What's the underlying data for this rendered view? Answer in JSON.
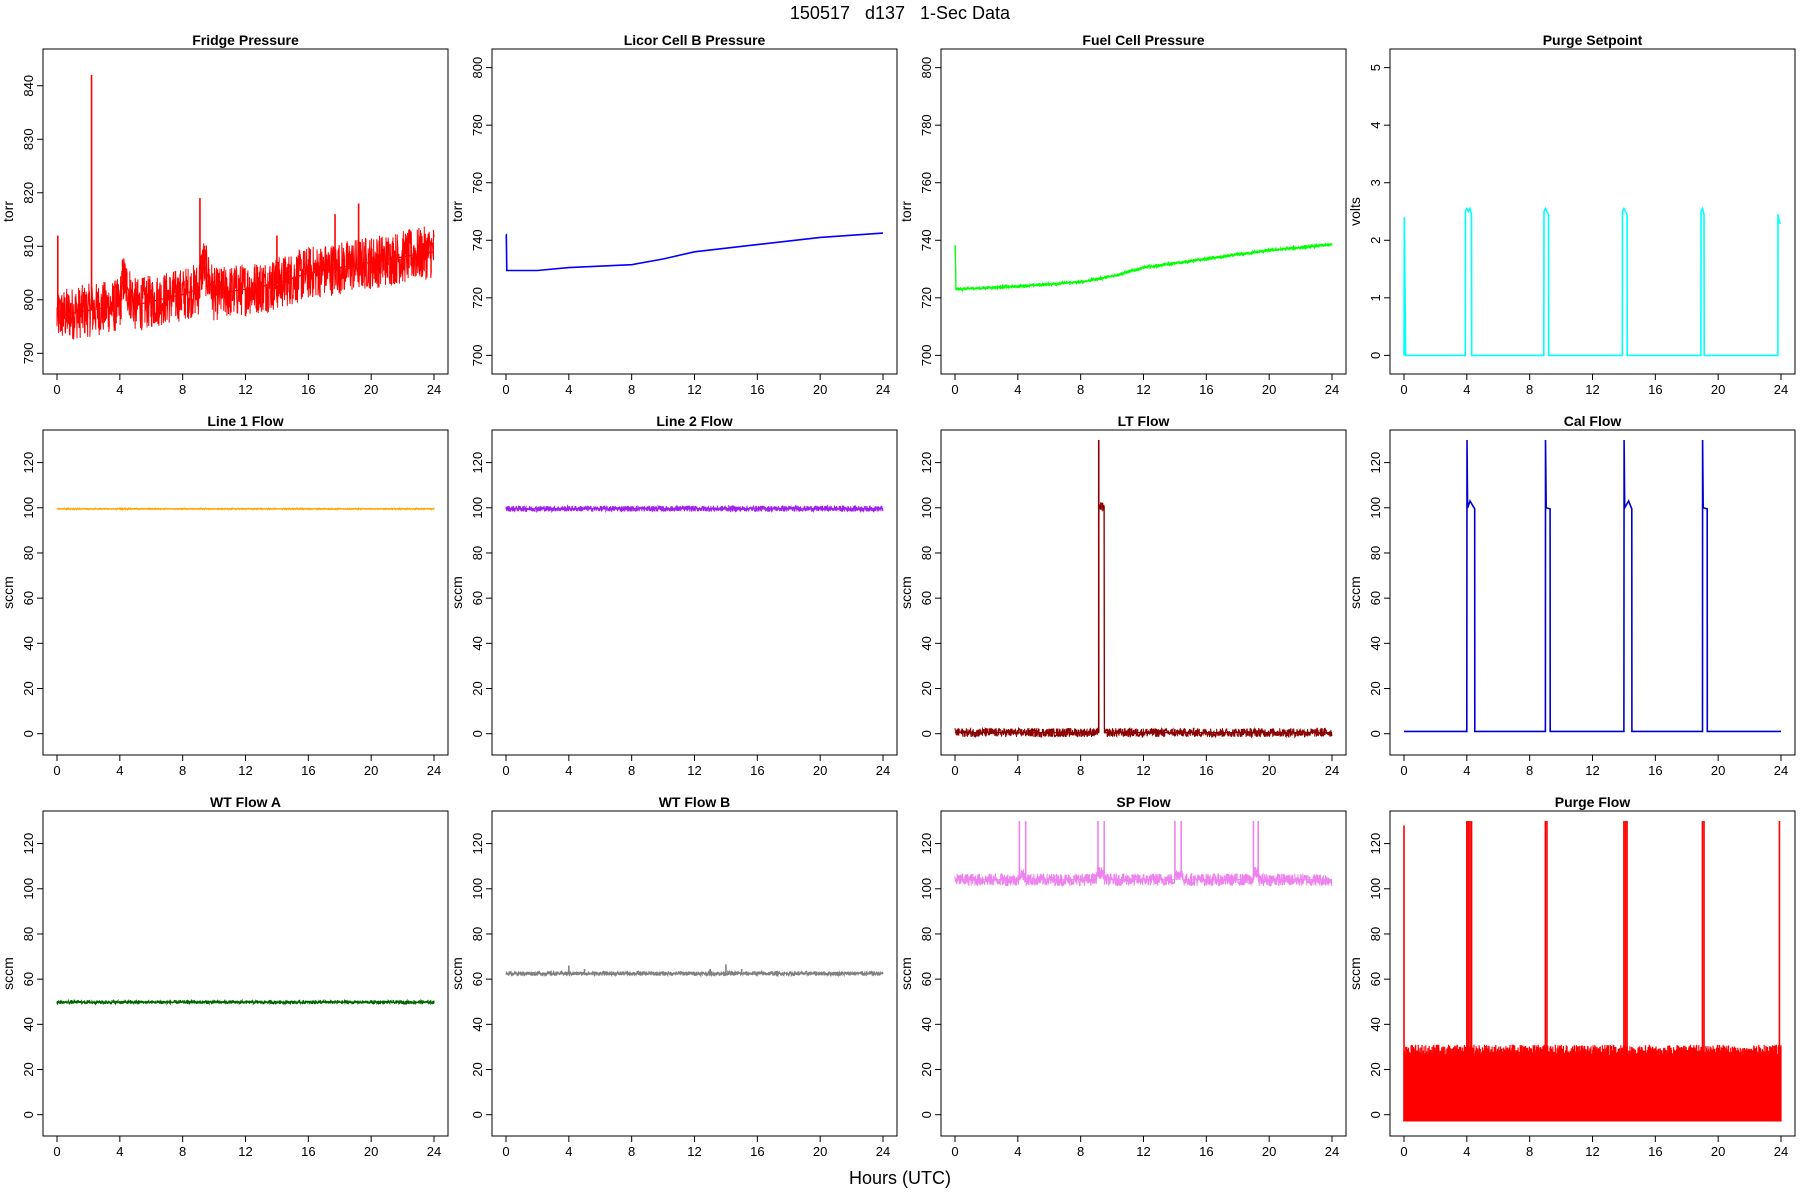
{
  "page": {
    "title": "150517   d137   1-Sec Data",
    "xlabel": "Hours (UTC)"
  },
  "chart_data": [
    {
      "id": "fridge_pressure",
      "type": "line",
      "title": "Fridge Pressure",
      "ylabel": "torr",
      "color": "#ff0000",
      "xlim": [
        0,
        24
      ],
      "ylim": [
        788,
        845
      ],
      "yticks": [
        790,
        800,
        810,
        820,
        830,
        840
      ],
      "xticks": [
        0,
        4,
        8,
        12,
        16,
        20,
        24
      ],
      "noise": 5,
      "series": [
        {
          "x": [
            0,
            4,
            4.2,
            5,
            8,
            9,
            9.3,
            10,
            14,
            16,
            20,
            24
          ],
          "y": [
            797,
            799,
            804,
            799,
            801,
            802,
            807,
            801,
            803,
            805,
            807,
            809
          ]
        }
      ],
      "spikes": [
        [
          0.05,
          812
        ],
        [
          2.2,
          842
        ],
        [
          9.1,
          819
        ],
        [
          14,
          812
        ],
        [
          17.7,
          816
        ],
        [
          19.2,
          818
        ]
      ]
    },
    {
      "id": "licor_cell_b_pressure",
      "type": "line",
      "title": "Licor Cell B Pressure",
      "ylabel": "torr",
      "color": "#0000ff",
      "xlim": [
        0,
        24
      ],
      "ylim": [
        697,
        803
      ],
      "yticks": [
        700,
        720,
        740,
        760,
        780,
        800
      ],
      "xticks": [
        0,
        4,
        8,
        12,
        16,
        20,
        24
      ],
      "noise": 0,
      "series": [
        {
          "x": [
            0,
            0.02,
            0.05,
            2,
            4,
            8,
            10,
            12,
            16,
            20,
            24
          ],
          "y": [
            742,
            742,
            729.5,
            729.5,
            730.5,
            731.5,
            733.5,
            736,
            738.5,
            741,
            742.5
          ]
        }
      ],
      "spikes": []
    },
    {
      "id": "fuel_cell_pressure",
      "type": "line",
      "title": "Fuel Cell Pressure",
      "ylabel": "torr",
      "color": "#00ff00",
      "xlim": [
        0,
        24
      ],
      "ylim": [
        697,
        803
      ],
      "yticks": [
        700,
        720,
        740,
        760,
        780,
        800
      ],
      "xticks": [
        0,
        4,
        8,
        12,
        16,
        20,
        24
      ],
      "noise": 0.6,
      "series": [
        {
          "x": [
            0,
            0.02,
            0.06,
            4,
            8,
            10,
            12,
            16,
            20,
            24
          ],
          "y": [
            738,
            738,
            723,
            724,
            725.5,
            727.5,
            730.5,
            733.5,
            736.5,
            738.5
          ]
        }
      ],
      "spikes": []
    },
    {
      "id": "purge_setpoint",
      "type": "line",
      "title": "Purge Setpoint",
      "ylabel": "volts",
      "color": "#00ffff",
      "xlim": [
        0,
        24
      ],
      "ylim": [
        -0.15,
        5.15
      ],
      "yticks": [
        0,
        1,
        2,
        3,
        4,
        5
      ],
      "xticks": [
        0,
        4,
        8,
        12,
        16,
        20,
        24
      ],
      "noise": 0,
      "series": [
        {
          "x": [
            0,
            0.02,
            0.1,
            3.9,
            3.91,
            4.0,
            4.1,
            4.2,
            4.3,
            4.31,
            8.9,
            8.91,
            9.0,
            9.1,
            9.2,
            9.21,
            13.9,
            13.91,
            14.0,
            14.1,
            14.2,
            14.21,
            18.9,
            18.91,
            19.0,
            19.1,
            19.11,
            23.8,
            23.81,
            23.9,
            24
          ],
          "y": [
            0,
            2.4,
            0,
            0,
            2.5,
            2.55,
            2.5,
            2.55,
            2.45,
            0,
            0,
            2.5,
            2.55,
            2.5,
            2.45,
            0,
            0,
            2.5,
            2.55,
            2.5,
            2.45,
            0,
            0,
            2.5,
            2.55,
            2.45,
            0,
            0,
            2.45,
            2.3,
            2.3
          ]
        }
      ],
      "spikes": []
    },
    {
      "id": "line_1_flow",
      "type": "line",
      "title": "Line 1 Flow",
      "ylabel": "sccm",
      "color": "#ffa500",
      "xlim": [
        0,
        24
      ],
      "ylim": [
        -5,
        130
      ],
      "yticks": [
        0,
        20,
        40,
        60,
        80,
        100,
        120
      ],
      "xticks": [
        0,
        4,
        8,
        12,
        16,
        20,
        24
      ],
      "noise": 0.2,
      "series": [
        {
          "x": [
            0,
            24
          ],
          "y": [
            99.5,
            99.5
          ]
        }
      ],
      "spikes": []
    },
    {
      "id": "line_2_flow",
      "type": "line",
      "title": "Line 2 Flow",
      "ylabel": "sccm",
      "color": "#a020f0",
      "xlim": [
        0,
        24
      ],
      "ylim": [
        -5,
        130
      ],
      "yticks": [
        0,
        20,
        40,
        60,
        80,
        100,
        120
      ],
      "xticks": [
        0,
        4,
        8,
        12,
        16,
        20,
        24
      ],
      "noise": 1.3,
      "series": [
        {
          "x": [
            0,
            24
          ],
          "y": [
            99.6,
            99.6
          ]
        }
      ],
      "spikes": []
    },
    {
      "id": "lt_flow",
      "type": "line",
      "title": "LT Flow",
      "ylabel": "sccm",
      "color": "#8b0000",
      "xlim": [
        0,
        24
      ],
      "ylim": [
        -5,
        130
      ],
      "yticks": [
        0,
        20,
        40,
        60,
        80,
        100,
        120
      ],
      "xticks": [
        0,
        4,
        8,
        12,
        16,
        20,
        24
      ],
      "noise": 2,
      "series": [
        {
          "x": [
            0,
            9.15,
            9.16,
            9.5,
            9.51,
            24
          ],
          "y": [
            0.5,
            0.5,
            100.5,
            100.5,
            0.5,
            0.5
          ]
        }
      ],
      "spikes": [
        [
          9.15,
          130
        ]
      ]
    },
    {
      "id": "cal_flow",
      "type": "line",
      "title": "Cal Flow",
      "ylabel": "sccm",
      "color": "#0000cd",
      "xlim": [
        0,
        24
      ],
      "ylim": [
        -5,
        130
      ],
      "yticks": [
        0,
        20,
        40,
        60,
        80,
        100,
        120
      ],
      "xticks": [
        0,
        4,
        8,
        12,
        16,
        20,
        24
      ],
      "noise": 0,
      "series": [
        {
          "x": [
            0,
            4.0,
            4.01,
            4.05,
            4.2,
            4.5,
            4.51,
            9.0,
            9.01,
            9.05,
            9.3,
            9.31,
            14.0,
            14.01,
            14.05,
            14.3,
            14.5,
            14.51,
            19.0,
            19.01,
            19.05,
            19.3,
            19.31,
            24
          ],
          "y": [
            1,
            1,
            130,
            100,
            103,
            99.5,
            1,
            1,
            130,
            100,
            99.5,
            1,
            1,
            130,
            100,
            103,
            99.5,
            1,
            1,
            130,
            100,
            99.5,
            1,
            1
          ]
        }
      ],
      "spikes": []
    },
    {
      "id": "wt_flow_a",
      "type": "line",
      "title": "WT Flow A",
      "ylabel": "sccm",
      "color": "#006400",
      "xlim": [
        0,
        24
      ],
      "ylim": [
        -5,
        130
      ],
      "yticks": [
        0,
        20,
        40,
        60,
        80,
        100,
        120
      ],
      "xticks": [
        0,
        4,
        8,
        12,
        16,
        20,
        24
      ],
      "noise": 0.8,
      "series": [
        {
          "x": [
            0,
            24
          ],
          "y": [
            49.8,
            49.8
          ]
        }
      ],
      "spikes": []
    },
    {
      "id": "wt_flow_b",
      "type": "line",
      "title": "WT Flow B",
      "ylabel": "sccm",
      "color": "#808080",
      "xlim": [
        0,
        24
      ],
      "ylim": [
        -5,
        130
      ],
      "yticks": [
        0,
        20,
        40,
        60,
        80,
        100,
        120
      ],
      "xticks": [
        0,
        4,
        8,
        12,
        16,
        20,
        24
      ],
      "noise": 1,
      "series": [
        {
          "x": [
            0,
            24
          ],
          "y": [
            62.5,
            62.5
          ]
        }
      ],
      "spikes": [
        [
          4,
          66
        ],
        [
          5,
          64.5
        ],
        [
          13,
          64.5
        ],
        [
          14,
          66.5
        ],
        [
          15,
          64.5
        ]
      ]
    },
    {
      "id": "sp_flow",
      "type": "line",
      "title": "SP Flow",
      "ylabel": "sccm",
      "color": "#ee82ee",
      "xlim": [
        0,
        24
      ],
      "ylim": [
        -5,
        130
      ],
      "yticks": [
        0,
        20,
        40,
        60,
        80,
        100,
        120
      ],
      "xticks": [
        0,
        4,
        8,
        12,
        16,
        20,
        24
      ],
      "noise": 2.8,
      "series": [
        {
          "x": [
            0,
            4.1,
            4.11,
            4.4,
            4.41,
            9.0,
            9.01,
            9.5,
            9.51,
            14.0,
            14.01,
            14.5,
            14.51,
            19.0,
            19.01,
            19.3,
            19.31,
            24
          ],
          "y": [
            104,
            104,
            106.5,
            106.5,
            104,
            104,
            107,
            107,
            104,
            104,
            106.5,
            106.5,
            104,
            104,
            107,
            107,
            104,
            104
          ]
        }
      ],
      "spikes": [
        [
          4.1,
          130
        ],
        [
          4.5,
          130
        ],
        [
          9.1,
          130
        ],
        [
          9.5,
          130
        ],
        [
          14.0,
          130
        ],
        [
          14.4,
          130
        ],
        [
          19.0,
          130
        ],
        [
          19.3,
          130
        ]
      ]
    },
    {
      "id": "purge_flow",
      "type": "line",
      "title": "Purge Flow",
      "ylabel": "sccm",
      "color": "#ff0000",
      "xlim": [
        0,
        24
      ],
      "ylim": [
        -5,
        130
      ],
      "yticks": [
        0,
        20,
        40,
        60,
        80,
        100,
        120
      ],
      "xticks": [
        0,
        4,
        8,
        12,
        16,
        20,
        24
      ],
      "noise": 0,
      "fill": {
        "low": -3,
        "high": 31
      },
      "series": [
        {
          "x": [
            0,
            24
          ],
          "y": [
            14,
            14
          ]
        }
      ],
      "spikes": [
        [
          0.0,
          128
        ],
        [
          4.0,
          130
        ],
        [
          4.1,
          130
        ],
        [
          4.2,
          130
        ],
        [
          4.3,
          130
        ],
        [
          9.0,
          130
        ],
        [
          9.1,
          130
        ],
        [
          14.0,
          130
        ],
        [
          14.1,
          130
        ],
        [
          14.2,
          130
        ],
        [
          19.0,
          130
        ],
        [
          19.1,
          130
        ],
        [
          23.9,
          130
        ]
      ]
    }
  ]
}
